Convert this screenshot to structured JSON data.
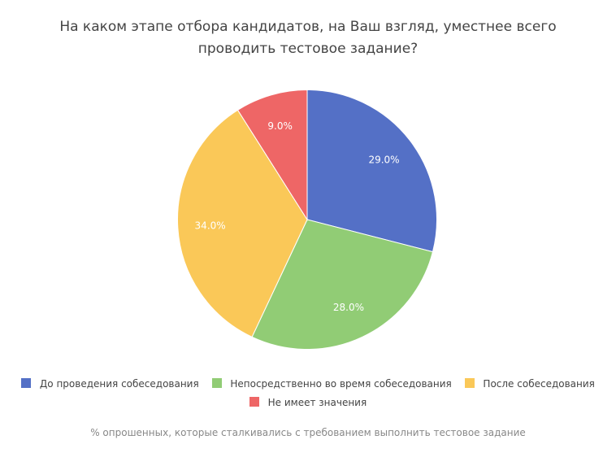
{
  "chart_data": {
    "type": "pie",
    "title_lines": [
      "На каком этапе отбора кандидатов, на Ваш взгляд, уместнее всего",
      "проводить тестовое задание?"
    ],
    "slices": [
      {
        "name": "До проведения собеседования",
        "value": 29.0,
        "label": "29.0%",
        "color": "#5470c6"
      },
      {
        "name": "Непосредственно во время собеседования",
        "value": 28.0,
        "label": "28.0%",
        "color": "#91cc75"
      },
      {
        "name": "После собеседования",
        "value": 34.0,
        "label": "34.0%",
        "color": "#fac858"
      },
      {
        "name": "Не имеет значения",
        "value": 9.0,
        "label": "9.0%",
        "color": "#ee6666"
      }
    ],
    "legend_position": "bottom",
    "footnote": "% опрошенных, которые сталкивались с требованием выполнить тестовое задание"
  }
}
